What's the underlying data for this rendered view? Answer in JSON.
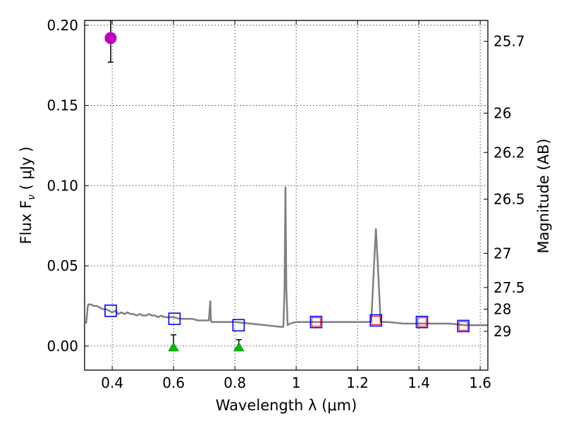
{
  "chart_data": {
    "type": "scatter",
    "xlabel": "Wavelength  λ (μm)",
    "ylabel": "Flux  F",
    "ylabel_sub": "ν",
    "ylabel_unit": "  ( μJy )",
    "ylabel_right": "Magnitude (AB)",
    "xlim": [
      0.31,
      1.625
    ],
    "ylim": [
      -0.015,
      0.203
    ],
    "xticks": [
      0.4,
      0.6,
      0.8,
      1.0,
      1.2,
      1.4,
      1.6
    ],
    "xtick_labels": [
      "0.4",
      "0.6",
      "0.8",
      "1",
      "1.2",
      "1.4",
      "1.6"
    ],
    "yticks": [
      0.0,
      0.05,
      0.1,
      0.15,
      0.2
    ],
    "ytick_labels": [
      "0.00",
      "0.05",
      "0.10",
      "0.15",
      "0.20"
    ],
    "right_ticks": [
      {
        "label": "25.7",
        "flux": 0.19
      },
      {
        "label": "26",
        "flux": 0.1452
      },
      {
        "label": "26.2",
        "flux": 0.1207
      },
      {
        "label": "26.5",
        "flux": 0.0916
      },
      {
        "label": "27",
        "flux": 0.0578
      },
      {
        "label": "27.5",
        "flux": 0.0365
      },
      {
        "label": "28",
        "flux": 0.023
      },
      {
        "label": "29",
        "flux": 0.0092
      }
    ],
    "grid": true,
    "model_sed": {
      "name": "Best-fit model",
      "color": "#808080",
      "x": [
        0.315,
        0.32,
        0.322,
        0.33,
        0.34,
        0.35,
        0.36,
        0.37,
        0.38,
        0.39,
        0.4,
        0.41,
        0.42,
        0.43,
        0.44,
        0.45,
        0.46,
        0.47,
        0.48,
        0.49,
        0.5,
        0.51,
        0.52,
        0.53,
        0.54,
        0.55,
        0.56,
        0.57,
        0.58,
        0.59,
        0.6,
        0.62,
        0.64,
        0.66,
        0.68,
        0.7,
        0.715,
        0.72,
        0.722,
        0.724,
        0.726,
        0.73,
        0.75,
        0.8,
        0.85,
        0.9,
        0.95,
        0.958,
        0.962,
        0.965,
        0.968,
        0.972,
        0.98,
        1.0,
        1.05,
        1.1,
        1.15,
        1.2,
        1.24,
        1.245,
        1.255,
        1.26,
        1.265,
        1.275,
        1.28,
        1.3,
        1.35,
        1.4,
        1.45,
        1.5,
        1.55,
        1.6,
        1.625
      ],
      "y": [
        0.014,
        0.024,
        0.026,
        0.026,
        0.025,
        0.025,
        0.024,
        0.023,
        0.023,
        0.022,
        0.021,
        0.022,
        0.02,
        0.021,
        0.02,
        0.021,
        0.02,
        0.02,
        0.019,
        0.02,
        0.019,
        0.019,
        0.02,
        0.019,
        0.019,
        0.018,
        0.019,
        0.018,
        0.018,
        0.018,
        0.018,
        0.017,
        0.017,
        0.017,
        0.016,
        0.016,
        0.016,
        0.028,
        0.016,
        0.015,
        0.015,
        0.015,
        0.015,
        0.015,
        0.014,
        0.013,
        0.012,
        0.012,
        0.035,
        0.099,
        0.035,
        0.013,
        0.014,
        0.015,
        0.015,
        0.015,
        0.015,
        0.015,
        0.015,
        0.016,
        0.055,
        0.073,
        0.055,
        0.016,
        0.015,
        0.015,
        0.014,
        0.014,
        0.014,
        0.014,
        0.013,
        0.013,
        0.013
      ]
    },
    "photometry_squares": [
      {
        "x": 0.395,
        "y": 0.022,
        "color": "#0000ff"
      },
      {
        "x": 0.603,
        "y": 0.017,
        "color": "#0000ff"
      },
      {
        "x": 0.812,
        "y": 0.013,
        "color": "#0000ff"
      },
      {
        "x": 1.065,
        "y": 0.015,
        "color": "#0000ff"
      },
      {
        "x": 1.26,
        "y": 0.016,
        "color": "#0000ff"
      },
      {
        "x": 1.41,
        "y": 0.015,
        "color": "#0000ff"
      },
      {
        "x": 1.545,
        "y": 0.0125,
        "color": "#0000ff"
      }
    ],
    "model_band_points": [
      {
        "x": 1.065,
        "y": 0.015,
        "color": "#ff0000"
      },
      {
        "x": 1.26,
        "y": 0.016,
        "color": "#ff0000"
      },
      {
        "x": 1.41,
        "y": 0.015,
        "color": "#ff0000"
      },
      {
        "x": 1.545,
        "y": 0.0125,
        "color": "#ff0000"
      }
    ],
    "detection": {
      "x": 0.395,
      "y": 0.192,
      "err_low": 0.177,
      "err_high": 0.203,
      "color": "#bf00bf"
    },
    "limits": [
      {
        "x": 0.6,
        "y": 0.0,
        "err_high": 0.007,
        "color": "#00bf00"
      },
      {
        "x": 0.813,
        "y": 0.0,
        "err_high": 0.004,
        "color": "#00bf00"
      }
    ]
  }
}
